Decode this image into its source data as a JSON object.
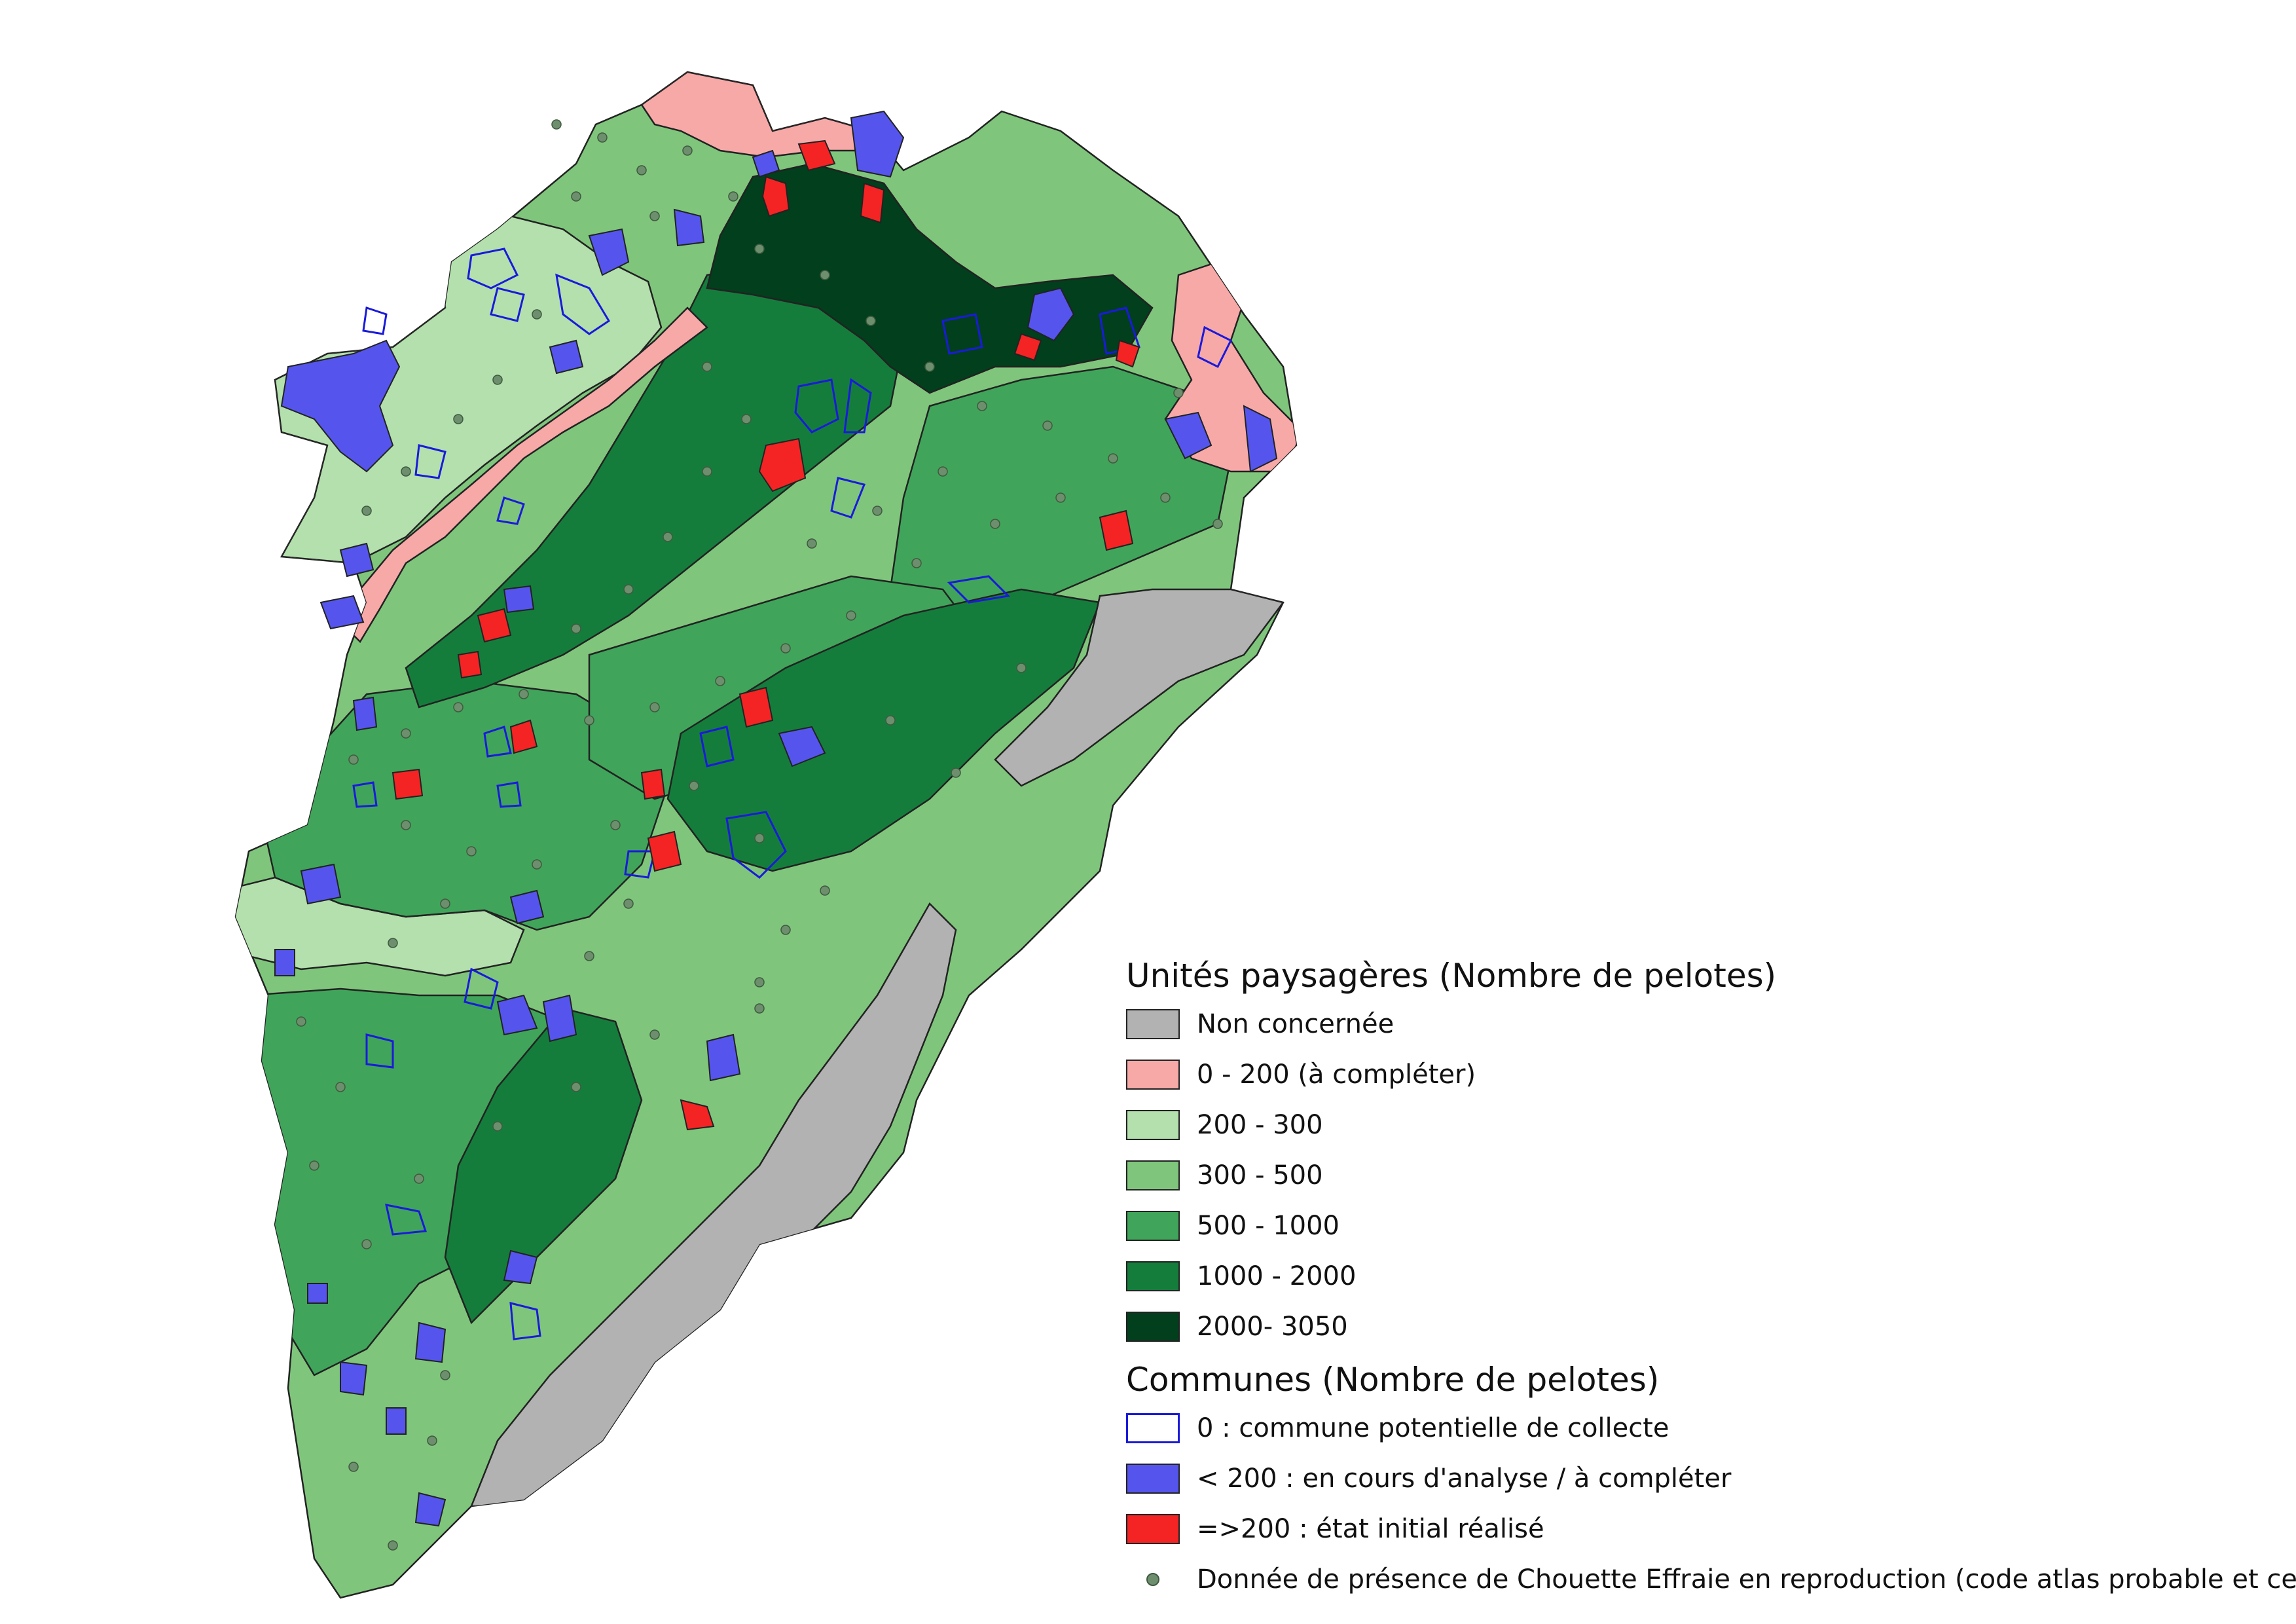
{
  "colors": {
    "non_concernee": "#b2b2b2",
    "c0_200": "#f7a9a8",
    "c200_300": "#b3e0ad",
    "c300_500": "#7fc67c",
    "c500_1000": "#40a55a",
    "c1000_2000": "#157d3c",
    "c2000_3050": "#013f1d",
    "commune_potentielle": "#1a1adb",
    "commune_en_cours": "#5555ee",
    "commune_realise": "#f42424",
    "presence_dot": "#6e8f6e"
  },
  "legend": {
    "unites_title": "Unités paysagères (Nombre de pelotes)",
    "unites_items": [
      {
        "label": "Non concernée",
        "color": "#b2b2b2"
      },
      {
        "label": "0 - 200 (à compléter)",
        "color": "#f7a9a8"
      },
      {
        "label": "200 - 300",
        "color": "#b3e0ad"
      },
      {
        "label": "300 - 500",
        "color": "#7fc67c"
      },
      {
        "label": "500 - 1000",
        "color": "#40a55a"
      },
      {
        "label": "1000 - 2000",
        "color": "#157d3c"
      },
      {
        "label": "2000- 3050",
        "color": "#013f1d"
      }
    ],
    "communes_title": "Communes (Nombre de pelotes)",
    "communes_items": [
      {
        "label": "0 : commune potentielle de collecte",
        "style": "outline"
      },
      {
        "label": "< 200 : en cours d'analyse / à compléter",
        "color": "#5555ee"
      },
      {
        "label": "=>200 : état initial réalisé",
        "color": "#f42424"
      }
    ],
    "presence_label": "Donnée de présence de Chouette Effraie en reproduction (code atlas probable et certain)"
  }
}
